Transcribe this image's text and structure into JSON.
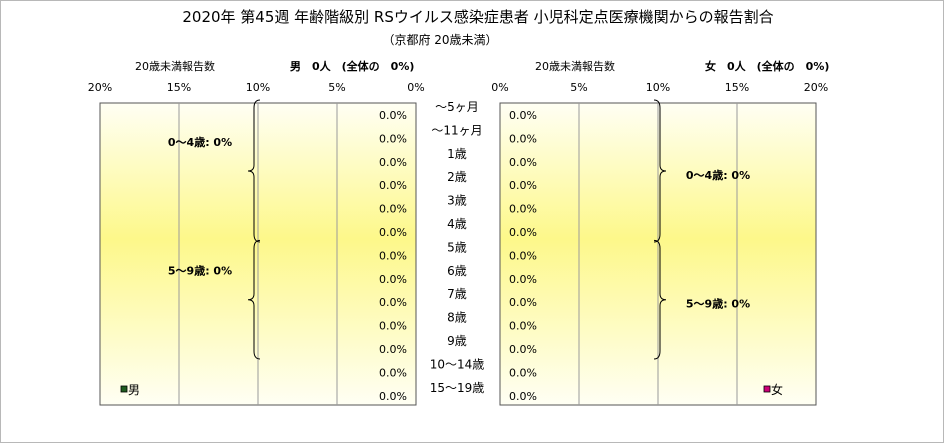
{
  "chart_data": {
    "type": "bar",
    "title": "2020年 第45週 年齢階級別 RSウイルス感染症患者 小児科定点医療機関からの報告割合",
    "subtitle": "（京都府 20歳未満）",
    "categories": [
      "～5ヶ月",
      "～11ヶ月",
      "1歳",
      "2歳",
      "3歳",
      "4歳",
      "5歳",
      "6歳",
      "7歳",
      "8歳",
      "9歳",
      "10～14歳",
      "15～19歳"
    ],
    "male": {
      "header_left": "20歳未満報告数",
      "header_right": "男　0人　(全体の　0%)",
      "legend": "男",
      "color": "#1f5c1f",
      "values": [
        0,
        0,
        0,
        0,
        0,
        0,
        0,
        0,
        0,
        0,
        0,
        0,
        0
      ],
      "value_labels": [
        "0.0%",
        "0.0%",
        "0.0%",
        "0.0%",
        "0.0%",
        "0.0%",
        "0.0%",
        "0.0%",
        "0.0%",
        "0.0%",
        "0.0%",
        "0.0%",
        "0.0%"
      ],
      "ticks": [
        "20%",
        "15%",
        "10%",
        "5%",
        "0%"
      ],
      "groups": [
        {
          "label": "0～4歳: 0%",
          "from": 0,
          "to": 5
        },
        {
          "label": "5～9歳: 0%",
          "from": 6,
          "to": 10
        }
      ]
    },
    "female": {
      "header_left": "20歳未満報告数",
      "header_right": "女　0人　(全体の　0%)",
      "legend": "女",
      "color": "#cc0077",
      "values": [
        0,
        0,
        0,
        0,
        0,
        0,
        0,
        0,
        0,
        0,
        0,
        0,
        0
      ],
      "value_labels": [
        "0.0%",
        "0.0%",
        "0.0%",
        "0.0%",
        "0.0%",
        "0.0%",
        "0.0%",
        "0.0%",
        "0.0%",
        "0.0%",
        "0.0%",
        "0.0%",
        "0.0%"
      ],
      "ticks": [
        "0%",
        "5%",
        "10%",
        "15%",
        "20%"
      ],
      "groups": [
        {
          "label": "0～4歳: 0%",
          "from": 0,
          "to": 5
        },
        {
          "label": "5～9歳: 0%",
          "from": 6,
          "to": 10
        }
      ]
    },
    "xlim": [
      0,
      20
    ],
    "grid": true
  }
}
